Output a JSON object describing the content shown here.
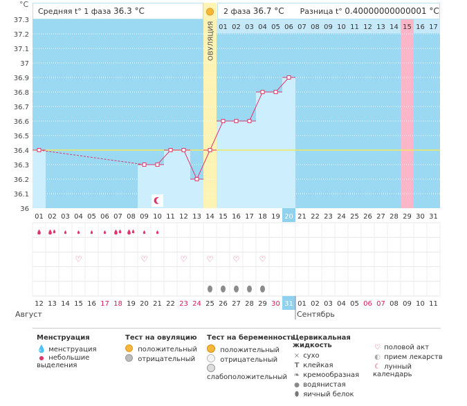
{
  "header": {
    "unit": "°C",
    "phase1_label": "Средняя t° 1 фаза",
    "phase1_value": "36.3 °C",
    "phase2_label": "2 фаза",
    "phase2_value": "36.7 °C",
    "diff_label": "Разница t°",
    "diff_value": "0.40000000000001 °C"
  },
  "chart_data": {
    "type": "line",
    "title": "",
    "ylabel": "°C",
    "ylim": [
      36.0,
      37.3
    ],
    "yticks": [
      "37.3",
      "37.2",
      "37.1",
      "37",
      "36.9",
      "36.8",
      "36.7",
      "36.6",
      "36.5",
      "36.4",
      "36.3",
      "36.2",
      "36.1",
      "36"
    ],
    "cycle_days": [
      "01",
      "02",
      "03",
      "04",
      "05",
      "06",
      "07",
      "08",
      "09",
      "10",
      "11",
      "12",
      "13",
      "14",
      "15",
      "16",
      "17",
      "18",
      "19",
      "20",
      "21",
      "22",
      "23",
      "24",
      "25",
      "26",
      "27",
      "28",
      "29",
      "30",
      "31"
    ],
    "after_ovulation_days": [
      "01",
      "02",
      "03",
      "04",
      "05",
      "06",
      "07",
      "08",
      "09",
      "10",
      "11",
      "12",
      "13",
      "14",
      "15",
      "16",
      "17"
    ],
    "ovulation_day": 14,
    "ovulation_label": "ОВУЛЯЦИЯ",
    "highlight_post_day": "15",
    "today_day": "20",
    "coverline": 36.4,
    "temperatures": [
      {
        "day": 1,
        "value": 36.4
      },
      {
        "day": 9,
        "value": 36.3
      },
      {
        "day": 10,
        "value": 36.3
      },
      {
        "day": 11,
        "value": 36.4
      },
      {
        "day": 12,
        "value": 36.4
      },
      {
        "day": 13,
        "value": 36.2
      },
      {
        "day": 14,
        "value": 36.4
      },
      {
        "day": 15,
        "value": 36.6
      },
      {
        "day": 16,
        "value": 36.6
      },
      {
        "day": 17,
        "value": 36.6
      },
      {
        "day": 18,
        "value": 36.8
      },
      {
        "day": 19,
        "value": 36.8
      },
      {
        "day": 20,
        "value": 36.9
      }
    ],
    "dashed_segment": [
      1,
      9
    ],
    "menstruation_full": [
      1,
      2
    ],
    "menstruation_light": [
      3,
      4,
      5,
      6,
      7,
      8,
      9,
      10
    ],
    "menstruation_heavy_days": [
      2,
      7,
      8
    ],
    "lunar_day": 10,
    "intercourse_days": [
      4,
      9,
      12,
      14,
      16,
      18
    ],
    "cervical_eggwhite_days": [
      14,
      15,
      16,
      17,
      18
    ],
    "calendar_dates": [
      "12",
      "13",
      "14",
      "15",
      "16",
      "17",
      "18",
      "19",
      "20",
      "21",
      "22",
      "23",
      "24",
      "25",
      "26",
      "27",
      "28",
      "29",
      "30",
      "31",
      "01",
      "02",
      "03",
      "04",
      "05",
      "06",
      "07",
      "08",
      "09",
      "10",
      "11"
    ],
    "weekend_indices": [
      5,
      6,
      11,
      12,
      18,
      19,
      25,
      26
    ],
    "today_date_index": 19,
    "month1": "Август",
    "month2": "Сентябрь",
    "month2_start_index": 20
  },
  "legend": {
    "menstruation": {
      "title": "Менструация",
      "items": [
        "менструация",
        "небольшие выделения"
      ]
    },
    "ovulation_test": {
      "title": "Тест на овуляцию",
      "items": [
        "положительный",
        "отрицательный"
      ]
    },
    "pregnancy_test": {
      "title": "Тест на беременность",
      "items": [
        "положительный",
        "отрицательный",
        "слабоположительный"
      ]
    },
    "cervical": {
      "title": "Цервикальная жидкость",
      "items": [
        "сухо",
        "клейкая",
        "кремообразная",
        "водянистая",
        "яичный белок"
      ]
    },
    "other": {
      "items": [
        "половой акт",
        "прием лекарств",
        "лунный календарь"
      ]
    }
  },
  "colors": {
    "sky": "#9bd9f3",
    "bar": "#cdeefc",
    "line": "#e0376b",
    "coverline": "#f2e85c",
    "ovulation": "#fcf3b4",
    "pink": "#fbb6c8",
    "today": "#90d2ee",
    "weekend": "#d8195a"
  }
}
